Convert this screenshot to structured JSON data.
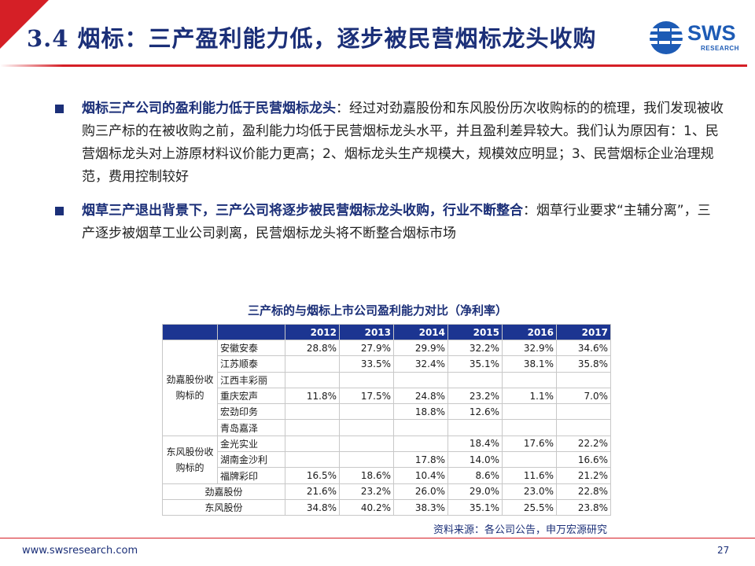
{
  "header": {
    "title": "3.4 烟标：三产盈利能力低，逐步被民营烟标龙头收购",
    "logo_text": "SWS",
    "logo_sub": "RESEARCH",
    "accent_color": "#d51f26",
    "brand_color": "#1b2f78"
  },
  "bullets": [
    {
      "lead": "烟标三产公司的盈利能力低于民营烟标龙头",
      "body": "：经过对劲嘉股份和东风股份历次收购标的的梳理，我们发现被收购三产标的在被收购之前，盈利能力均低于民营烟标龙头水平，并且盈利差异较大。我们认为原因有：1、民营烟标龙头对上游原材料议价能力更高；2、烟标龙头生产规模大，规模效应明显；3、民营烟标企业治理规范，费用控制较好"
    },
    {
      "lead": "烟草三产退出背景下，三产公司将逐步被民营烟标龙头收购，行业不断整合",
      "body": "：烟草行业要求“主辅分离”，三产逐步被烟草工业公司剥离，民营烟标龙头将不断整合烟标市场"
    }
  ],
  "table": {
    "caption": "三产标的与烟标上市公司盈利能力对比（净利率）",
    "years": [
      "2012",
      "2013",
      "2014",
      "2015",
      "2016",
      "2017"
    ],
    "groups": [
      {
        "name": "劲嘉股份收购标的",
        "rows": [
          {
            "company": "安徽安泰",
            "values": [
              "28.8%",
              "27.9%",
              "29.9%",
              "32.2%",
              "32.9%",
              "34.6%"
            ]
          },
          {
            "company": "江苏顺泰",
            "values": [
              "",
              "33.5%",
              "32.4%",
              "35.1%",
              "38.1%",
              "35.8%"
            ]
          },
          {
            "company": "江西丰彩丽",
            "values": [
              "",
              "",
              "",
              "",
              "",
              ""
            ]
          },
          {
            "company": "重庆宏声",
            "values": [
              "11.8%",
              "17.5%",
              "24.8%",
              "23.2%",
              "1.1%",
              "7.0%"
            ]
          },
          {
            "company": "宏劲印务",
            "values": [
              "",
              "",
              "18.8%",
              "12.6%",
              "",
              ""
            ]
          },
          {
            "company": "青岛嘉泽",
            "values": [
              "",
              "",
              "",
              "",
              "",
              ""
            ]
          }
        ]
      },
      {
        "name": "东风股份收购标的",
        "rows": [
          {
            "company": "金光实业",
            "values": [
              "",
              "",
              "",
              "18.4%",
              "17.6%",
              "22.2%"
            ]
          },
          {
            "company": "湖南金沙利",
            "values": [
              "",
              "",
              "17.8%",
              "14.0%",
              "",
              "16.6%"
            ]
          },
          {
            "company": "福牌彩印",
            "values": [
              "16.5%",
              "18.6%",
              "10.4%",
              "8.6%",
              "11.6%",
              "21.2%"
            ]
          }
        ]
      }
    ],
    "totals": [
      {
        "company": "劲嘉股份",
        "values": [
          "21.6%",
          "23.2%",
          "26.0%",
          "29.0%",
          "23.0%",
          "22.8%"
        ]
      },
      {
        "company": "东风股份",
        "values": [
          "34.8%",
          "40.2%",
          "38.3%",
          "35.1%",
          "25.5%",
          "23.8%"
        ]
      }
    ],
    "source": "资料来源：各公司公告，申万宏源研究"
  },
  "footer": {
    "url": "www.swsresearch.com",
    "page": "27"
  }
}
